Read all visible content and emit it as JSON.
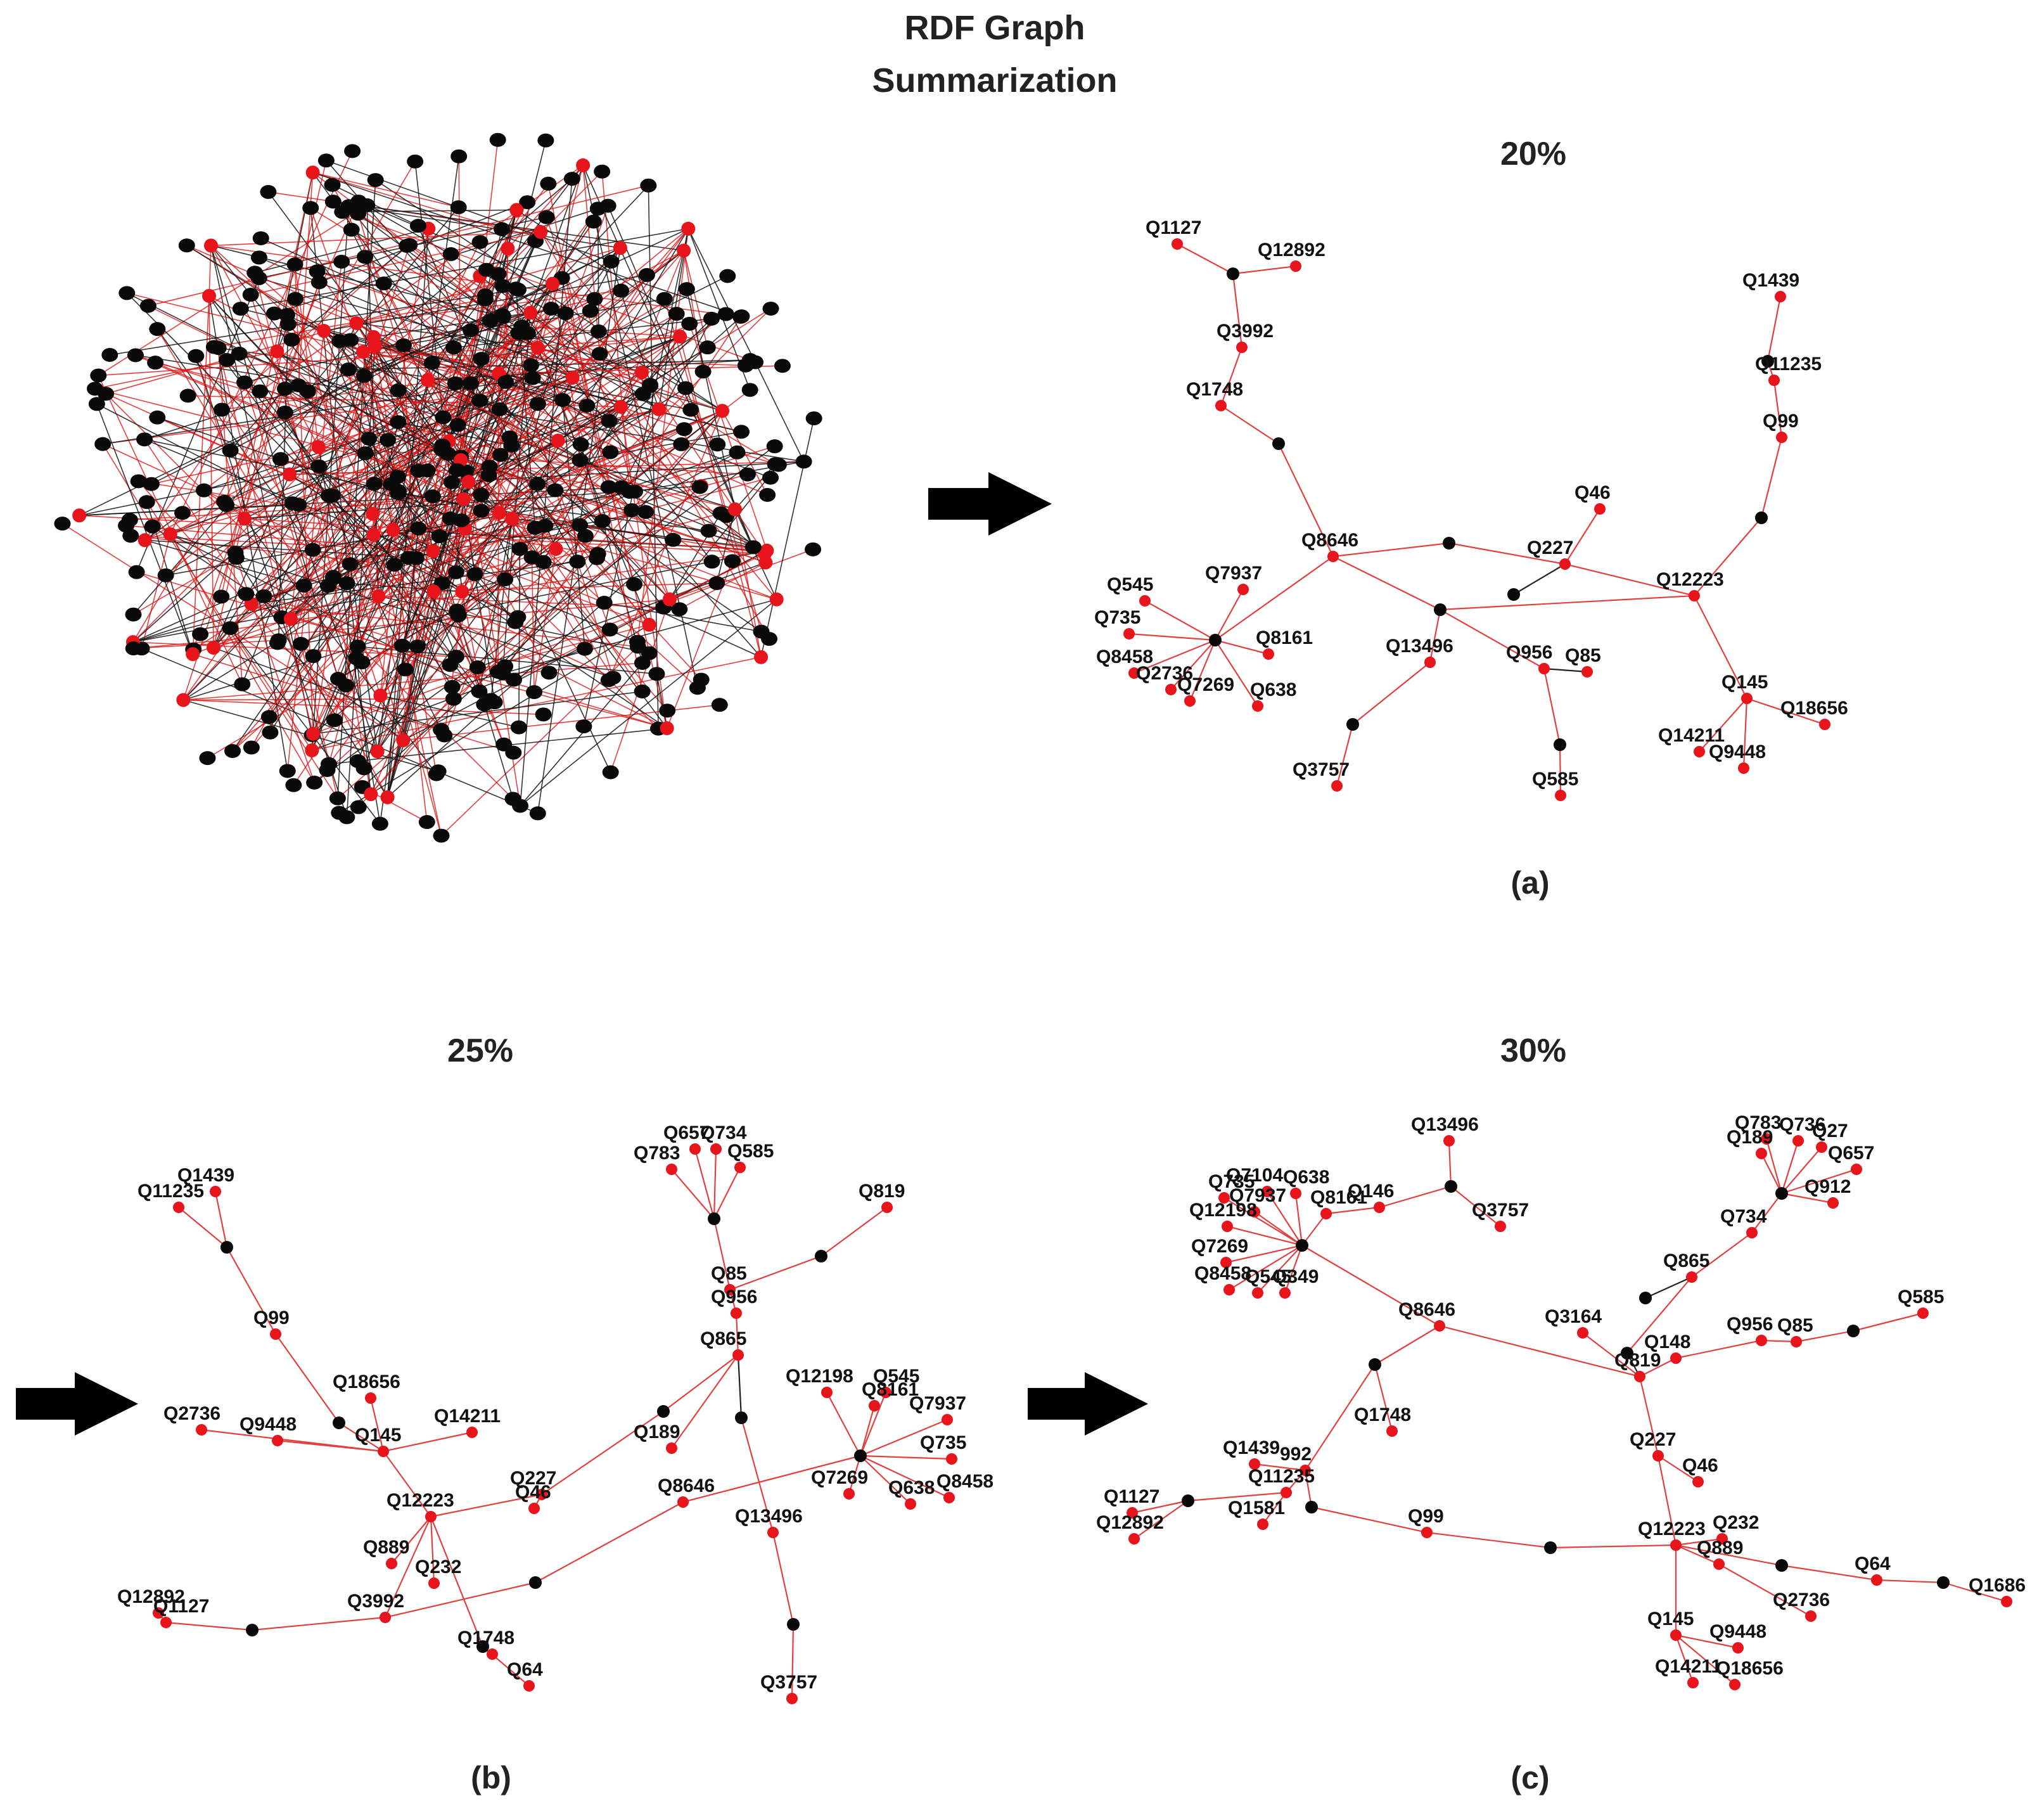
{
  "figure": {
    "title_line1": "RDF Graph",
    "title_line2": "Summarization"
  },
  "panels": {
    "a": {
      "percent": "20%",
      "caption": "(a)"
    },
    "b": {
      "percent": "25%",
      "caption": "(b)"
    },
    "c": {
      "percent": "30%",
      "caption": "(c)"
    }
  },
  "colors": {
    "red_node": "#e8141b",
    "black_node": "#0a0a0a",
    "red_edge": "#e04040",
    "black_edge": "#222222",
    "arrow": "#000000"
  },
  "graph_a": {
    "node_labels": [
      "Q1127",
      "Q12892",
      "Q3992",
      "Q1748",
      "Q8646",
      "Q7937",
      "Q545",
      "Q735",
      "Q8161",
      "Q8458",
      "Q2736",
      "Q7269",
      "Q638",
      "Q13496",
      "Q3757",
      "Q956",
      "Q85",
      "Q585",
      "Q46",
      "Q227",
      "Q12223",
      "Q1439",
      "Q11235",
      "Q99",
      "Q145",
      "Q18656",
      "Q14211",
      "Q9448"
    ]
  },
  "graph_b": {
    "node_labels": [
      "Q1439",
      "Q11235",
      "Q99",
      "Q18656",
      "Q2736",
      "Q9448",
      "Q145",
      "Q14211",
      "Q12223",
      "Q889",
      "Q232",
      "Q12892",
      "Q1127",
      "Q3992",
      "Q1748",
      "Q64",
      "Q227",
      "Q46",
      "Q189",
      "Q657",
      "Q734",
      "Q783",
      "Q585",
      "Q85",
      "Q956",
      "Q865",
      "Q819",
      "Q8646",
      "Q13496",
      "Q3757",
      "Q12198",
      "Q545",
      "Q8161",
      "Q7937",
      "Q735",
      "Q7269",
      "Q638",
      "Q8458"
    ]
  },
  "graph_c": {
    "node_labels": [
      "Q13496",
      "Q3757",
      "Q7104",
      "Q638",
      "Q735",
      "Q7937",
      "Q8161",
      "Q146",
      "Q12198",
      "Q7269",
      "Q8458",
      "Q545",
      "Q349",
      "Q8646",
      "Q1748",
      "Q1439",
      "992",
      "Q11235",
      "Q1127",
      "Q12892",
      "Q1581",
      "Q99",
      "Q783",
      "Q189",
      "Q736",
      "Q27",
      "Q657",
      "Q912",
      "Q734",
      "Q865",
      "Q3164",
      "Q148",
      "Q956",
      "Q85",
      "Q585",
      "Q819",
      "Q227",
      "Q46",
      "Q12223",
      "Q232",
      "Q889",
      "Q64",
      "Q1686",
      "Q2736",
      "Q145",
      "Q9448",
      "Q14211",
      "Q18656"
    ]
  }
}
